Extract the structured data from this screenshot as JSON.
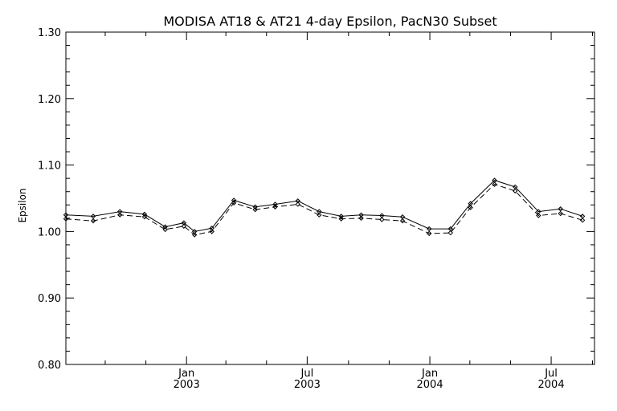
{
  "chart_data": {
    "type": "line",
    "title": "MODISA AT18 & AT21 4-day Epsilon, PacN30 Subset",
    "ylabel": "Epsilon",
    "xlabel": "",
    "ylim": [
      0.8,
      1.3
    ],
    "xlim": [
      "2002-07-04",
      "2004-09-04"
    ],
    "y_ticks": [
      "1.30",
      "1.20",
      "1.10",
      "1.00",
      "0.90",
      "0.80"
    ],
    "y_tick_values": [
      1.3,
      1.2,
      1.1,
      1.0,
      0.9,
      0.8
    ],
    "x_ticks": [
      {
        "month": "Jan",
        "year": "2003",
        "date": "2003-01-01"
      },
      {
        "month": "Jul",
        "year": "2003",
        "date": "2003-07-01"
      },
      {
        "month": "Jan",
        "year": "2004",
        "date": "2004-01-01"
      },
      {
        "month": "Jul",
        "year": "2004",
        "date": "2004-07-01"
      }
    ],
    "x_minor_ticks": [
      "2002-09-01",
      "2002-11-01",
      "2003-03-01",
      "2003-05-01",
      "2003-09-01",
      "2003-11-01",
      "2004-03-01",
      "2004-05-01",
      "2004-09-01"
    ],
    "grid": false,
    "legend": "none",
    "x": [
      "2002-07-04",
      "2002-08-14",
      "2002-09-23",
      "2002-10-30",
      "2002-11-30",
      "2002-12-28",
      "2003-01-13",
      "2003-02-08",
      "2003-03-13",
      "2003-04-14",
      "2003-05-14",
      "2003-06-17",
      "2003-07-19",
      "2003-08-21",
      "2003-09-20",
      "2003-10-21",
      "2003-11-21",
      "2003-12-31",
      "2004-02-01",
      "2004-03-02",
      "2004-04-07",
      "2004-05-08",
      "2004-06-12",
      "2004-07-15",
      "2004-08-17"
    ],
    "series": [
      {
        "style": "solid",
        "values": [
          1.025,
          1.023,
          1.03,
          1.026,
          1.007,
          1.013,
          1.0,
          1.005,
          1.047,
          1.037,
          1.041,
          1.046,
          1.03,
          1.023,
          1.025,
          1.024,
          1.022,
          1.004,
          1.004,
          1.042,
          1.077,
          1.067,
          1.03,
          1.034,
          1.023
        ]
      },
      {
        "style": "dashed",
        "values": [
          1.019,
          1.016,
          1.025,
          1.022,
          1.003,
          1.008,
          0.995,
          1.0,
          1.043,
          1.033,
          1.037,
          1.041,
          1.025,
          1.019,
          1.02,
          1.018,
          1.016,
          0.997,
          0.998,
          1.036,
          1.071,
          1.061,
          1.024,
          1.027,
          1.017
        ]
      }
    ]
  }
}
